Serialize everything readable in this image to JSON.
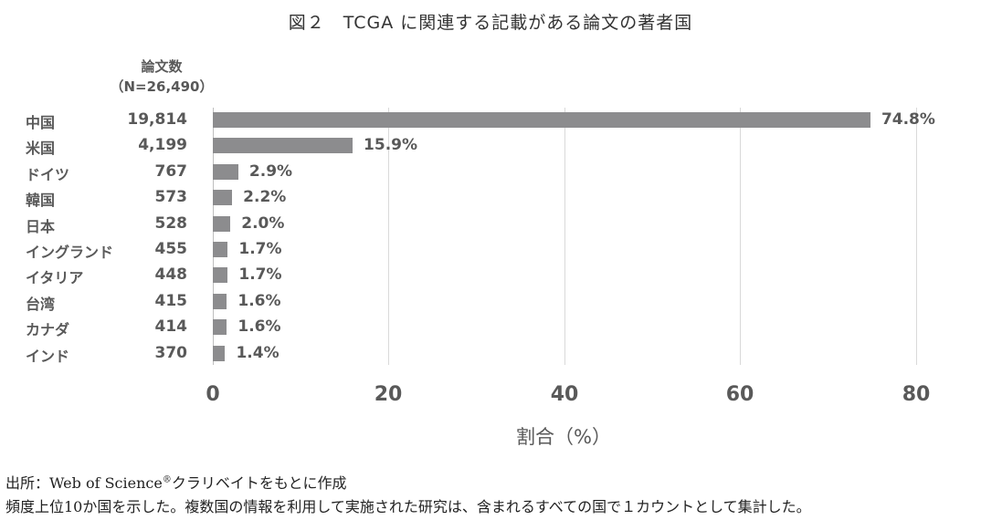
{
  "title": "図２　TCGA に関連する記載がある論文の著者国",
  "count_header": {
    "line1": "論文数",
    "line2": "（N=26,490）"
  },
  "chart_data": {
    "type": "bar",
    "orientation": "horizontal",
    "title": "図２　TCGA に関連する記載がある論文の著者国",
    "categories": [
      "中国",
      "米国",
      "ドイツ",
      "韓国",
      "日本",
      "イングランド",
      "イタリア",
      "台湾",
      "カナダ",
      "インド"
    ],
    "counts": [
      "19,814",
      "4,199",
      "767",
      "573",
      "528",
      "455",
      "448",
      "415",
      "414",
      "370"
    ],
    "values": [
      74.8,
      15.9,
      2.9,
      2.2,
      2.0,
      1.7,
      1.7,
      1.6,
      1.6,
      1.4
    ],
    "value_labels": [
      "74.8%",
      "15.9%",
      "2.9%",
      "2.2%",
      "2.0%",
      "1.7%",
      "1.7%",
      "1.6%",
      "1.6%",
      "1.4%"
    ],
    "count_header": "論文数（N=26,490）",
    "xlabel": "割合（%）",
    "ylabel": "",
    "xlim": [
      0,
      80
    ],
    "xticks": [
      "0",
      "20",
      "40",
      "60",
      "80"
    ],
    "grid": true,
    "bar_color": "#8c8c8e"
  },
  "notes": {
    "source_prefix": "出所：Web of Science",
    "source_reg": "®",
    "source_suffix": "クラリベイトをもとに作成",
    "line2": "頻度上位10か国を示した。複数国の情報を利用して実施された研究は、含まれるすべての国で１カウントとして集計した。"
  }
}
